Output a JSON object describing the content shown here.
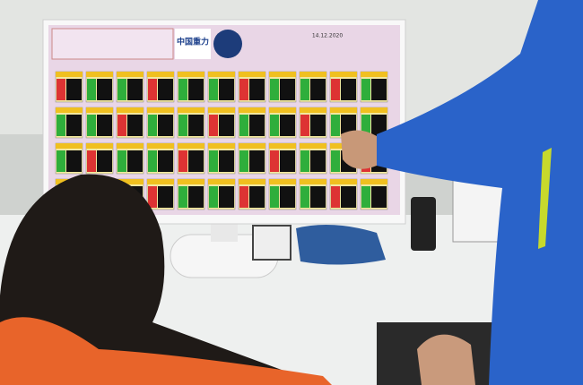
{
  "screen": {
    "logo": "中国重力",
    "date": "14.12.2020"
  }
}
